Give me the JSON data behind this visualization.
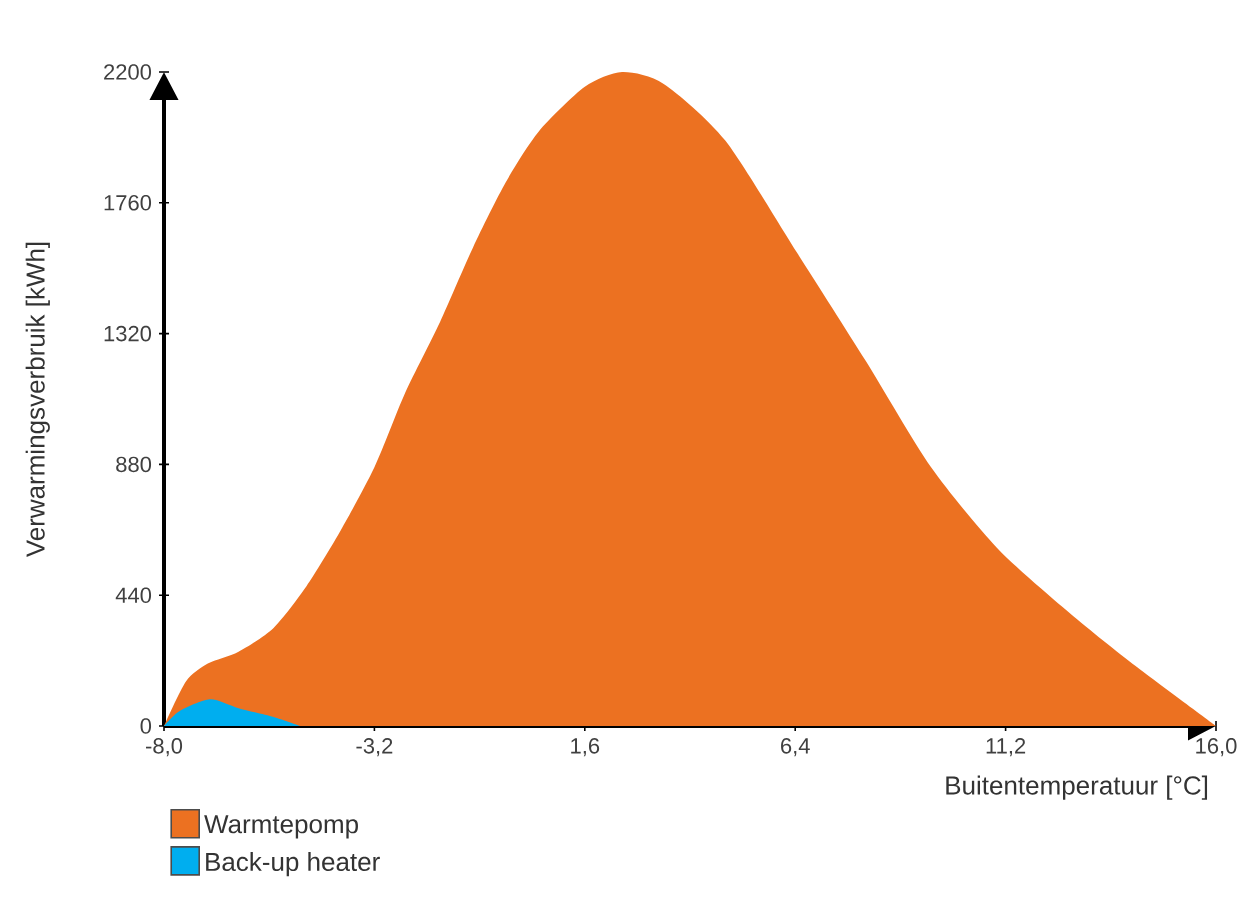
{
  "chart_data": {
    "type": "area",
    "xlabel": "Buitentemperatuur [°C]",
    "ylabel": "Verwarmingsverbruik [kWh]",
    "xlim": [
      -8,
      16
    ],
    "ylim": [
      0,
      2200
    ],
    "xticks": [
      {
        "value": -8,
        "label": "-8,0"
      },
      {
        "value": -3.2,
        "label": "-3,2"
      },
      {
        "value": 1.6,
        "label": "1,6"
      },
      {
        "value": 6.4,
        "label": "6,4"
      },
      {
        "value": 11.2,
        "label": "11,2"
      },
      {
        "value": 16,
        "label": "16,0"
      }
    ],
    "yticks": [
      0,
      440,
      880,
      1320,
      1760,
      2200
    ],
    "grid": false,
    "legend": "bottom left",
    "series": [
      {
        "name": "Warmtepomp",
        "color": "#ec7121",
        "x": [
          -8,
          -7.5,
          -7.0,
          -6.3,
          -5.5,
          -4.75,
          -4.0,
          -3.2,
          -2.5,
          -1.7,
          -0.95,
          -0.2,
          0.55,
          1.6,
          2.45,
          3.4,
          4.8,
          6.45,
          8.0,
          9.5,
          11.0,
          12.5,
          14.0,
          16
        ],
        "values": [
          0,
          150,
          210,
          250,
          330,
          470,
          650,
          870,
          1120,
          1360,
          1610,
          1830,
          2000,
          2150,
          2200,
          2160,
          1970,
          1590,
          1230,
          870,
          600,
          400,
          220,
          0
        ]
      },
      {
        "name": "Back-up heater",
        "color": "#00aeef",
        "x": [
          -8,
          -7.65,
          -6.95,
          -6.3,
          -5.5,
          -4.9
        ],
        "values": [
          0,
          50,
          90,
          60,
          30,
          0
        ]
      }
    ]
  }
}
